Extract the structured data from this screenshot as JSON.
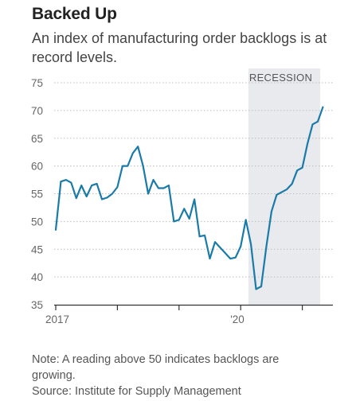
{
  "header": {
    "title": "Backed Up",
    "subtitle": "An index of manufacturing order backlogs is at record levels."
  },
  "footer": {
    "note": "Note: A reading above 50 indicates backlogs are",
    "note_cont": "growing.",
    "source": "Source: Institute for Supply Management"
  },
  "colors": {
    "line": "#1a7aa8",
    "shade": "#e8eaed",
    "grid": "#bdbdbd",
    "axis": "#333333"
  },
  "chart_data": {
    "type": "line",
    "title": "Backed Up",
    "subtitle": "An index of manufacturing order backlogs is at record levels.",
    "xlabel": "",
    "ylabel": "",
    "ylim": [
      35,
      75
    ],
    "yticks": [
      35,
      40,
      45,
      50,
      55,
      60,
      65,
      70,
      75
    ],
    "x_ticks": [
      {
        "month": 0,
        "label": "2017"
      },
      {
        "month": 12,
        "label": ""
      },
      {
        "month": 24,
        "label": ""
      },
      {
        "month": 36,
        "label": "'20"
      },
      {
        "month": 48,
        "label": ""
      }
    ],
    "shaded_region": {
      "label": "RECESSION",
      "start_month": 37.5,
      "end_month": 51.5
    },
    "grid": "horizontal",
    "series": [
      {
        "values": [
          48.5,
          57.2,
          57.5,
          57.0,
          54.2,
          56.5,
          54.5,
          56.5,
          56.8,
          54.0,
          54.3,
          55.0,
          56.2,
          60.0,
          60.0,
          62.3,
          63.5,
          60.0,
          55.0,
          57.5,
          56.0,
          56.0,
          56.5,
          50.0,
          50.3,
          52.3,
          50.5,
          54.0,
          47.3,
          47.5,
          43.3,
          46.3,
          45.3,
          44.3,
          43.3,
          43.5,
          45.5,
          50.3,
          45.9,
          37.8,
          38.3,
          45.5,
          51.8,
          54.8,
          55.3,
          55.8,
          56.8,
          59.2,
          59.7,
          64.0,
          67.5,
          68.0,
          70.6
        ]
      }
    ],
    "x_start": "Jan 2017",
    "x_end": "May 2021"
  }
}
